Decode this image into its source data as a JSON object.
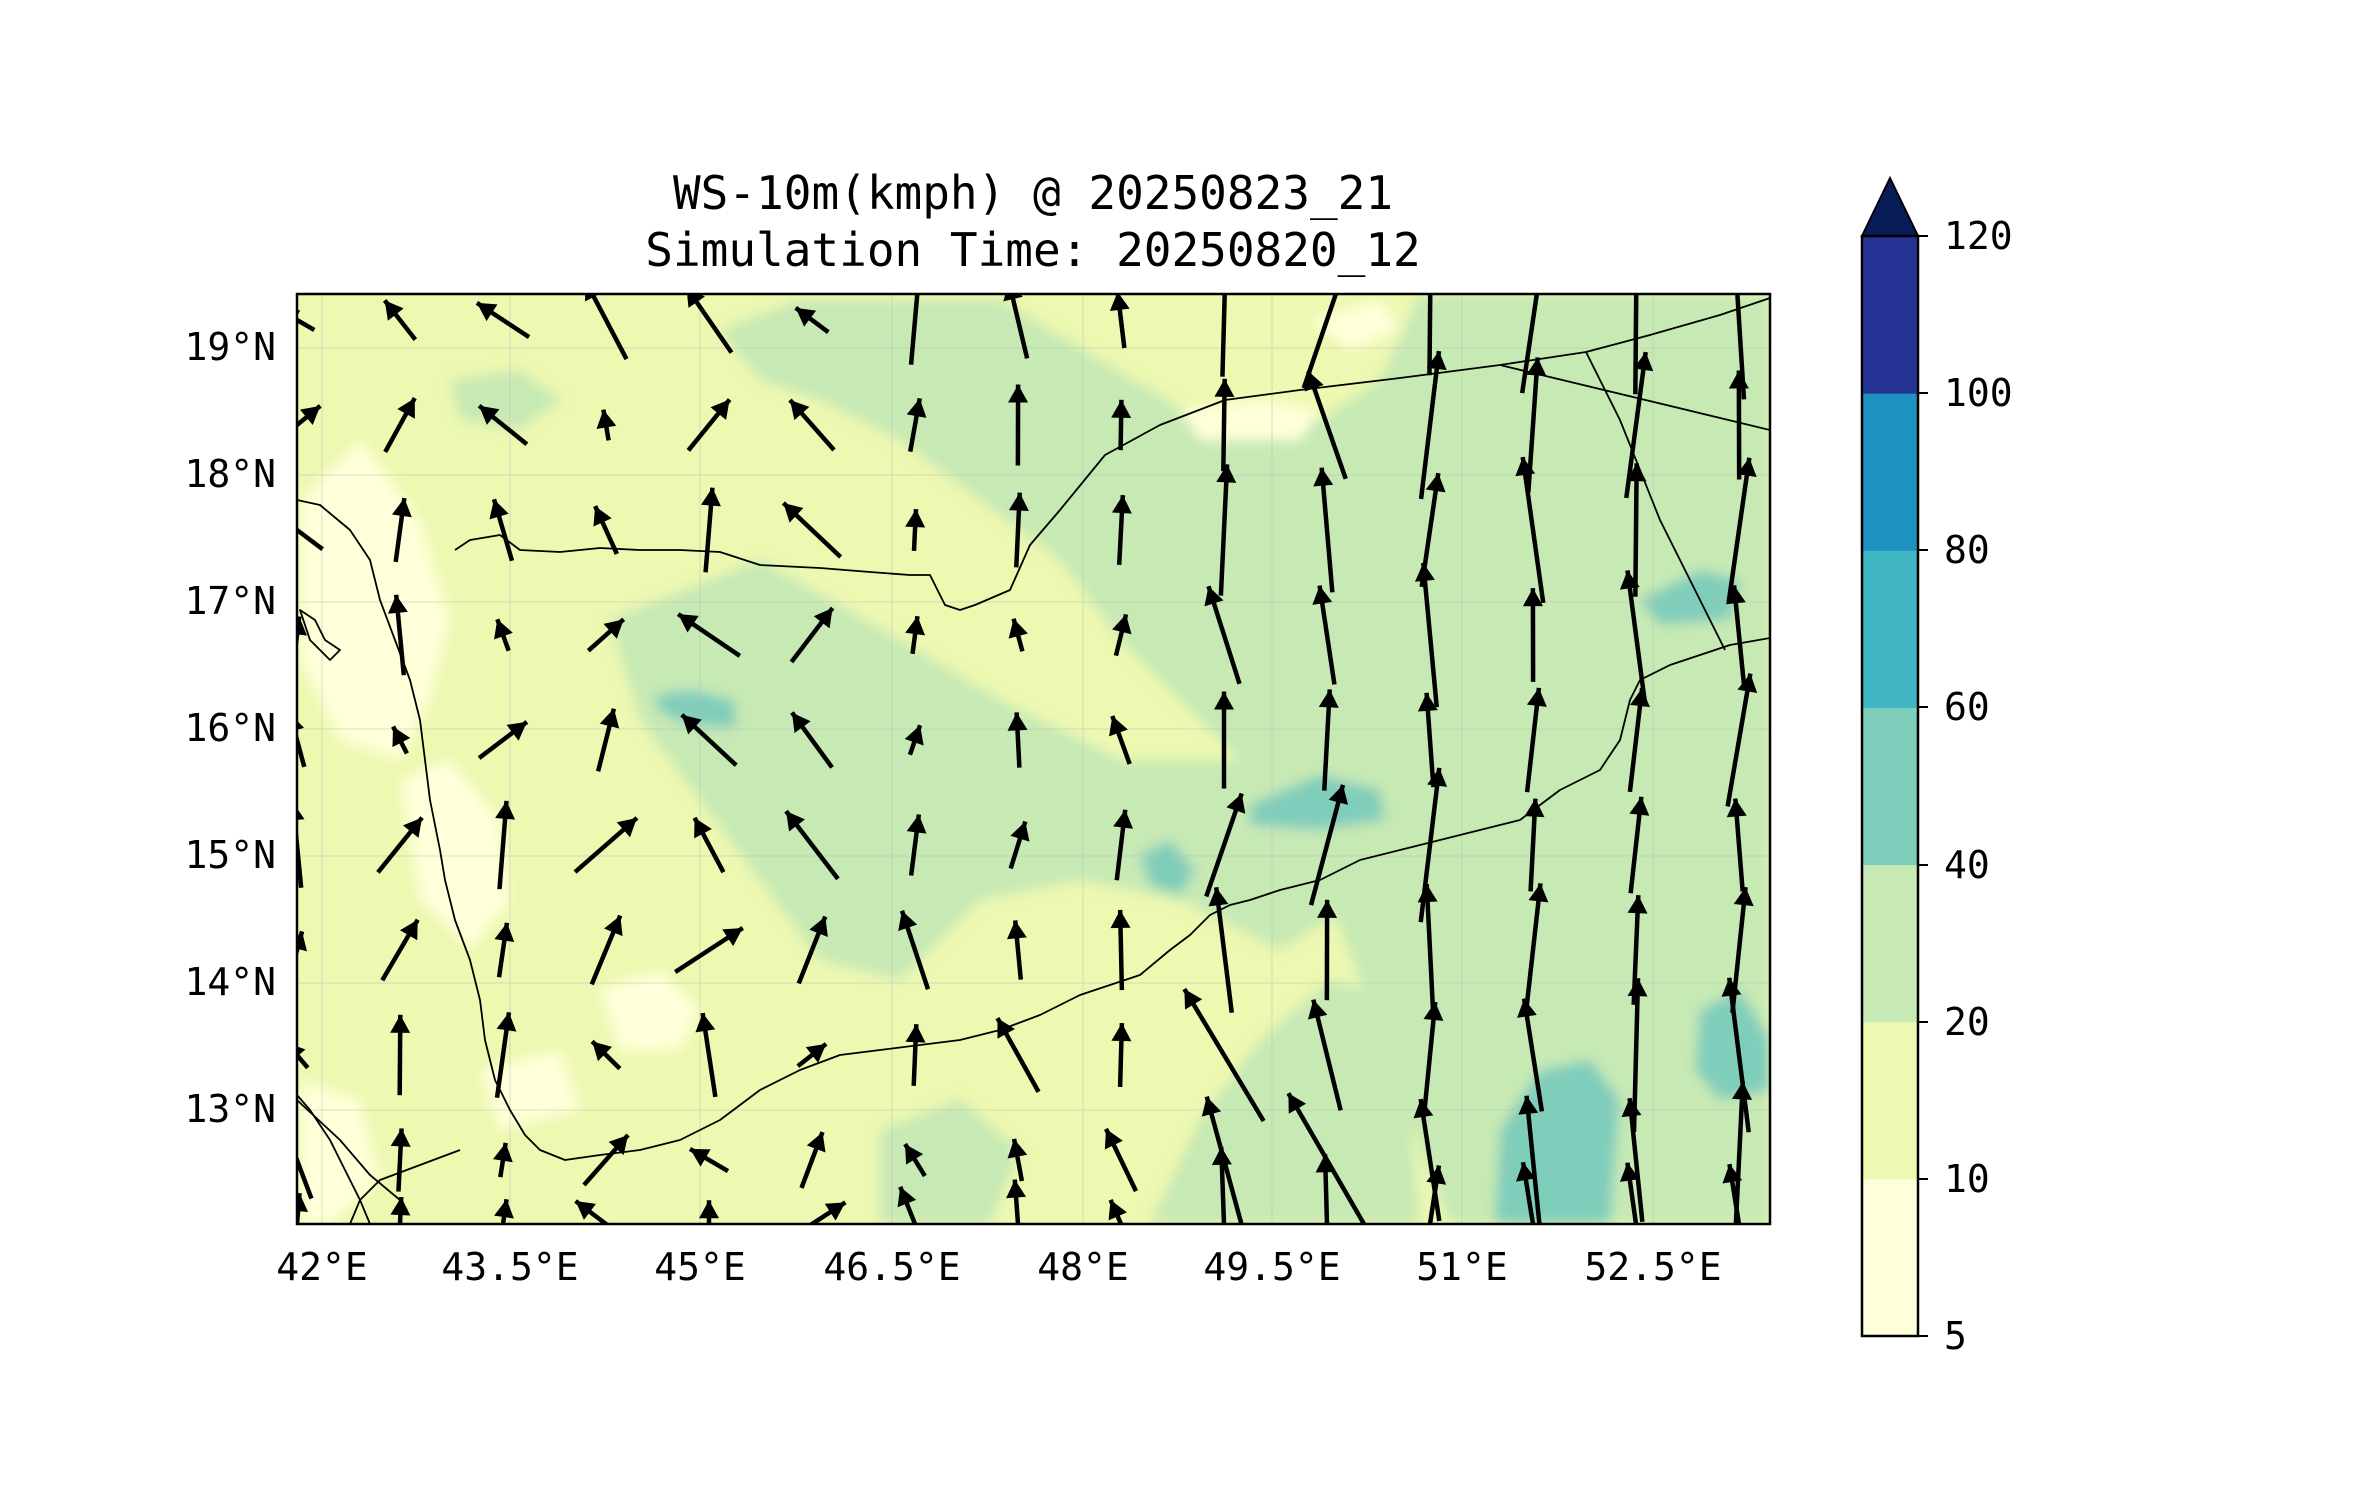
{
  "title": {
    "line1": "WS-10m(kmph) @ 20250823_21",
    "line2": "Simulation Time: 20250820_12"
  },
  "map": {
    "lon_range": [
      42.0,
      53.8
    ],
    "lat_range": [
      12.1,
      19.45
    ],
    "x_ticks": [
      "42°E",
      "43.5°E",
      "45°E",
      "46.5°E",
      "48°E",
      "49.5°E",
      "51°E",
      "52.5°E"
    ],
    "y_ticks": [
      "13°N",
      "14°N",
      "15°N",
      "16°N",
      "17°N",
      "18°N",
      "19°N"
    ],
    "grid": true,
    "fill_colors": {
      "5-10": "#ffffd9",
      "10-20": "#edf8b1",
      "20-40": "#c7e9b4",
      "40-60": "#7fcdbb"
    }
  },
  "colorbar": {
    "labels": [
      "5",
      "10",
      "20",
      "40",
      "60",
      "80",
      "100",
      "120"
    ],
    "colors": [
      "#ffffd9",
      "#edf8b1",
      "#c7e9b4",
      "#7fcdbb",
      "#41b6c4",
      "#1d91c0",
      "#253494",
      "#081d58"
    ],
    "extend": "max",
    "extend_color": "#081d58"
  }
}
